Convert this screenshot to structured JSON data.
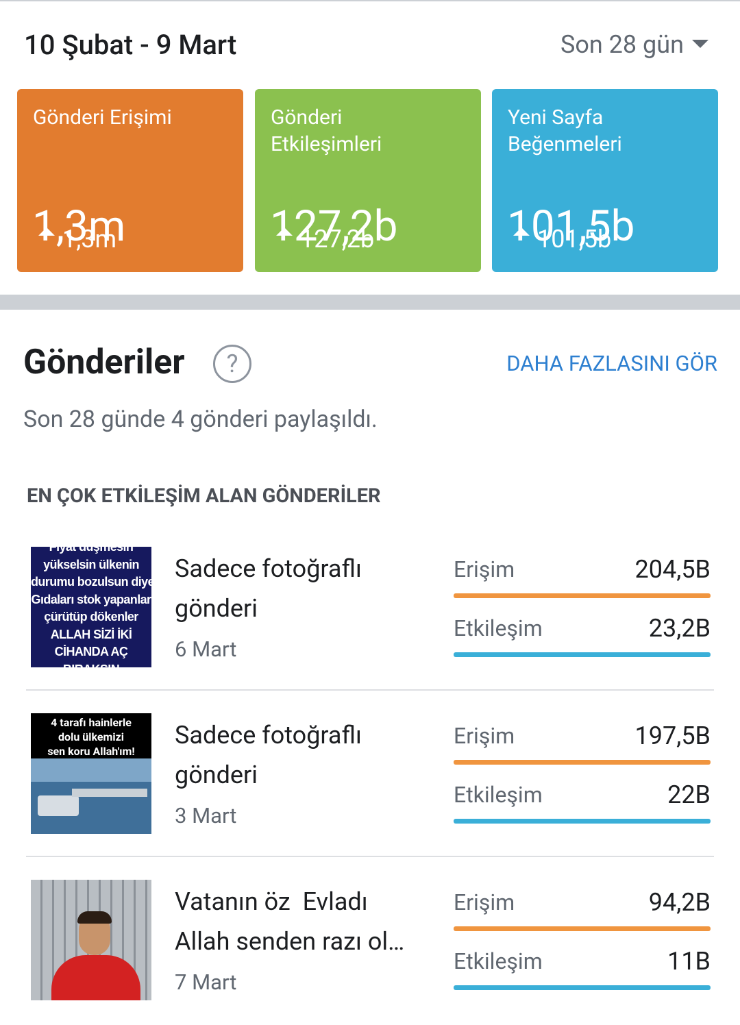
{
  "header": {
    "date_range": "10 Şubat - 9 Mart",
    "period": "Son 28 gün"
  },
  "summary_cards": [
    {
      "title": [
        "Gönderi Erişimi"
      ],
      "value": "1,3m",
      "change": "1,3m",
      "color": "#e27c2f"
    },
    {
      "title": [
        "Gönderi",
        "Etkileşimleri"
      ],
      "value": "127,2b",
      "change": "127,2b",
      "color": "#8bc14f"
    },
    {
      "title": [
        "Yeni Sayfa",
        "Beğenmeleri"
      ],
      "value": "101,5b",
      "change": "101,5b",
      "color": "#3aafd8"
    }
  ],
  "posts_section": {
    "title": "Gönderiler",
    "help_icon": "?",
    "see_more": "DAHA FAZLASINI GÖR",
    "summary": "Son 28 günde 4 gönderi paylaşıldı.",
    "list_heading": "EN ÇOK ETKİLEŞİM ALAN GÖNDERİLER",
    "posts": [
      {
        "thumbnail_text": [
          "Fiyat düşmesin",
          "yükselsin ülkenin",
          "durumu bozulsun diye",
          "Gıdaları stok yapanlar",
          "çürütüp dökenler",
          "ALLAH SİZİ İKİ",
          "CİHANDA AÇ",
          "BIRAKSIN"
        ],
        "title": [
          "Sadece fotoğraflı",
          "gönderi"
        ],
        "date": "6 Mart",
        "metrics": [
          {
            "label": "Erişim",
            "value": "204,5B"
          },
          {
            "label": "Etkileşim",
            "value": "23,2B"
          }
        ]
      },
      {
        "thumbnail_text": [
          "4 tarafı hainlerle",
          "dolu ülkemizi",
          "sen koru Allah'ım!"
        ],
        "title": [
          "Sadece fotoğraflı",
          "gönderi"
        ],
        "date": "3 Mart",
        "metrics": [
          {
            "label": "Erişim",
            "value": "197,5B"
          },
          {
            "label": "Etkileşim",
            "value": "22B"
          }
        ]
      },
      {
        "thumbnail_text": [],
        "title": [
          "Vatanın öz  Evladı",
          "Allah senden razı ol…"
        ],
        "date": "7 Mart",
        "metrics": [
          {
            "label": "Erişim",
            "value": "94,2B"
          },
          {
            "label": "Etkileşim",
            "value": "11B"
          }
        ]
      }
    ]
  }
}
